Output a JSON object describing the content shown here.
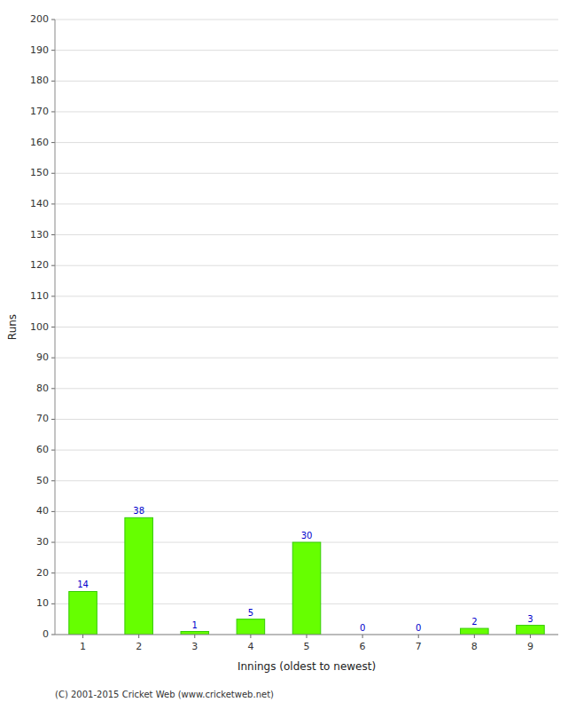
{
  "chart_data": {
    "type": "bar",
    "xlabel": "Innings (oldest to newest)",
    "ylabel": "Runs",
    "categories": [
      "1",
      "2",
      "3",
      "4",
      "5",
      "6",
      "7",
      "8",
      "9"
    ],
    "values": [
      14,
      38,
      1,
      5,
      30,
      0,
      0,
      2,
      3
    ],
    "color": "#66ff00",
    "ylim": [
      0,
      200
    ],
    "yticks": [
      0,
      10,
      20,
      30,
      40,
      50,
      60,
      70,
      80,
      90,
      100,
      110,
      120,
      130,
      140,
      150,
      160,
      170,
      180,
      190,
      200
    ],
    "grid": true,
    "data_labels": true,
    "footer": "(C) 2001-2015 Cricket Web (www.cricketweb.net)"
  }
}
